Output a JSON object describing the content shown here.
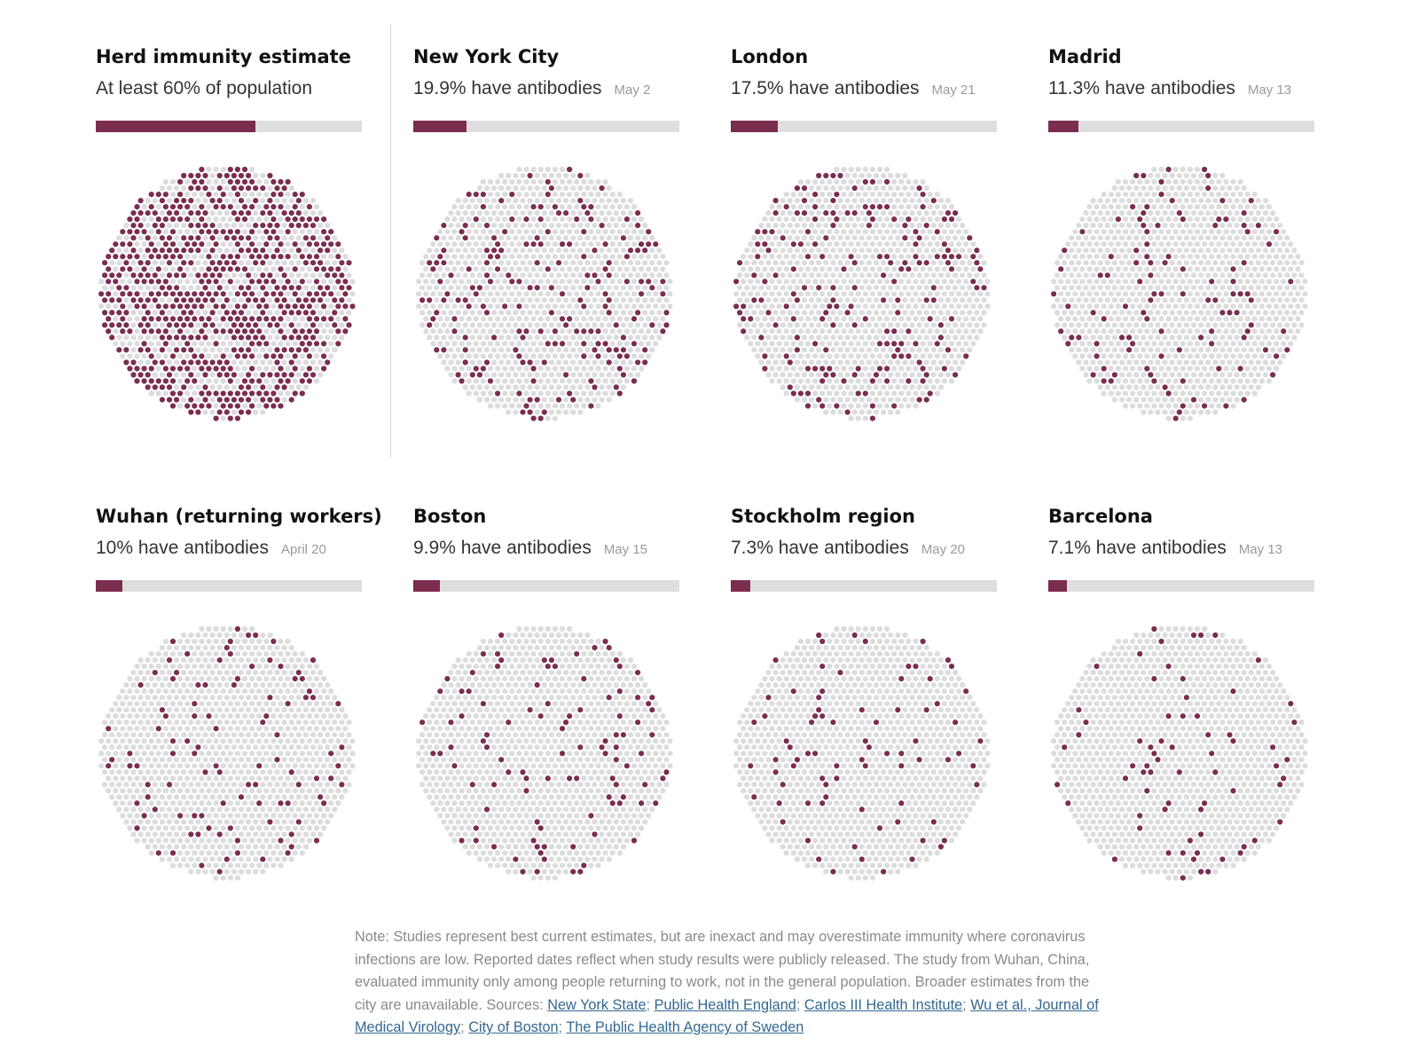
{
  "colors": {
    "accent": "#7b2d4f",
    "bar_track": "#dedede",
    "dot_empty": "#dcdcdc",
    "title_text": "#121212",
    "subtitle_text": "#333333",
    "date_text": "#999999",
    "note_text": "#8a8a8a",
    "link": "#326891"
  },
  "chart_data": {
    "type": "dot-matrix",
    "dots_per_circle_approx": 1000,
    "panels": [
      {
        "title": "Herd immunity estimate",
        "subtitle": "At least 60% of population",
        "date": "",
        "value_pct": 60
      },
      {
        "title": "New York City",
        "subtitle": "19.9% have antibodies",
        "date": "May 2",
        "value_pct": 19.9
      },
      {
        "title": "London",
        "subtitle": "17.5% have antibodies",
        "date": "May 21",
        "value_pct": 17.5
      },
      {
        "title": "Madrid",
        "subtitle": "11.3% have antibodies",
        "date": "May 13",
        "value_pct": 11.3
      },
      {
        "title": "Wuhan (returning workers)",
        "subtitle": "10% have antibodies",
        "date": "April 20",
        "value_pct": 10
      },
      {
        "title": "Boston",
        "subtitle": "9.9% have antibodies",
        "date": "May 15",
        "value_pct": 9.9
      },
      {
        "title": "Stockholm region",
        "subtitle": "7.3% have antibodies",
        "date": "May 20",
        "value_pct": 7.3
      },
      {
        "title": "Barcelona",
        "subtitle": "7.1% have antibodies",
        "date": "May 13",
        "value_pct": 7.1
      }
    ]
  },
  "note": {
    "text1": "Note: Studies represent best current estimates, but are inexact and may overestimate immunity where coronavirus infections are low. Reported dates reflect when study results were publicly released. The study from Wuhan, China, evaluated immunity only among people returning to work, not in the general population. Broader estimates from the city are unavailable. Sources: ",
    "links": [
      "New York State",
      "Public Health England",
      "Carlos III Health Institute",
      "Wu et al., Journal of Medical Virology",
      "City of Boston",
      "The Public Health Agency of Sweden"
    ],
    "separator": "; "
  }
}
